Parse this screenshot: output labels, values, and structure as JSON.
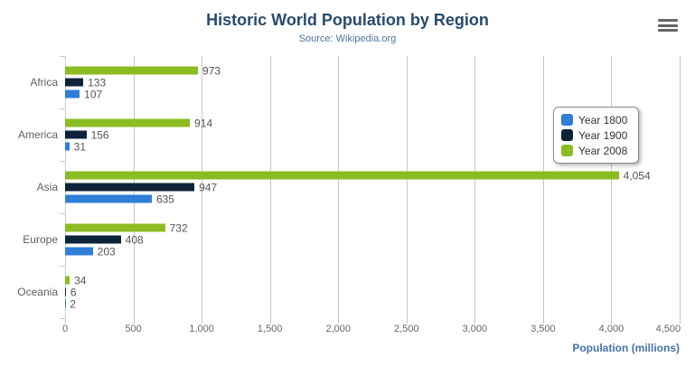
{
  "header": {
    "title": "Historic World Population by Region",
    "subtitle": "Source: Wikipedia.org"
  },
  "export_menu": {
    "icon": "hamburger-menu-icon"
  },
  "chart_data": {
    "type": "bar",
    "title": "Historic World Population by Region",
    "subtitle": "Source: Wikipedia.org",
    "categories": [
      "Africa",
      "America",
      "Asia",
      "Europe",
      "Oceania"
    ],
    "series": [
      {
        "name": "Year 1800",
        "color": "#2f7ed8",
        "values": [
          107,
          31,
          635,
          203,
          2
        ]
      },
      {
        "name": "Year 1900",
        "color": "#0d233a",
        "values": [
          133,
          156,
          947,
          408,
          6
        ]
      },
      {
        "name": "Year 2008",
        "color": "#8bbc21",
        "values": [
          973,
          914,
          4054,
          732,
          34
        ]
      }
    ],
    "series_display_order_top_to_bottom": [
      "Year 2008",
      "Year 1900",
      "Year 1800"
    ],
    "xlabel": "Population (millions)",
    "xlim": [
      0,
      4500
    ],
    "x_ticks": [
      0,
      500,
      1000,
      1500,
      2000,
      2500,
      3000,
      3500,
      4000,
      4500
    ],
    "grid": true,
    "legend": {
      "position": "right",
      "entries": [
        "Year 1800",
        "Year 1900",
        "Year 2008"
      ]
    }
  },
  "colors": {
    "title": "#274b6d",
    "subtitle": "#4d759e",
    "axis_title": "#4572A7",
    "gridline": "#c6c6c6",
    "category_axis_line": "#C0D0E0",
    "labels": "#555555"
  }
}
